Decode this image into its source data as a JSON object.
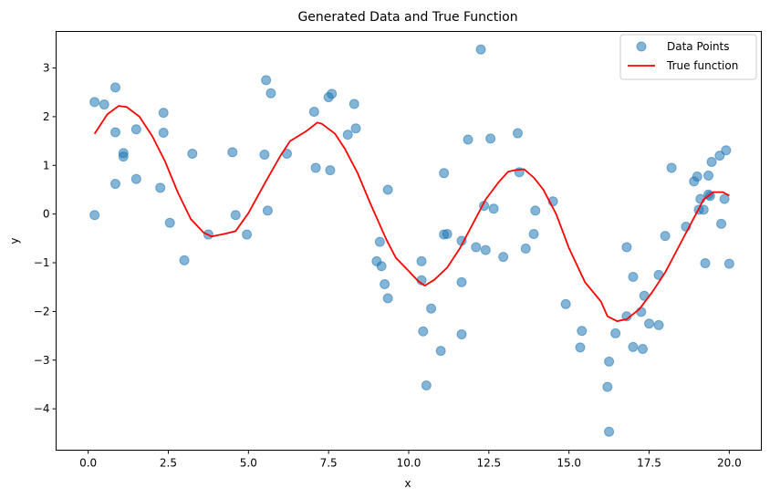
{
  "chart_data": {
    "type": "scatter",
    "title": "Generated Data and True Function",
    "xlabel": "x",
    "ylabel": "y",
    "xlim": [
      -1.0,
      21.0
    ],
    "ylim": [
      -4.85,
      3.75
    ],
    "xticks": [
      0.0,
      2.5,
      5.0,
      7.5,
      10.0,
      12.5,
      15.0,
      17.5,
      20.0
    ],
    "xtick_labels": [
      "0.0",
      "2.5",
      "5.0",
      "7.5",
      "10.0",
      "12.5",
      "15.0",
      "17.5",
      "20.0"
    ],
    "yticks": [
      -4,
      -3,
      -2,
      -1,
      0,
      1,
      2,
      3
    ],
    "ytick_labels": [
      "−4",
      "−3",
      "−2",
      "−1",
      "0",
      "1",
      "2",
      "3"
    ],
    "grid": false,
    "legend_position": "top-right",
    "series": [
      {
        "name": "Data Points",
        "kind": "scatter",
        "color": "#1f77b4",
        "opacity": 0.55,
        "points": [
          [
            0.2,
            2.3
          ],
          [
            0.2,
            -0.02
          ],
          [
            0.5,
            2.25
          ],
          [
            0.85,
            2.6
          ],
          [
            0.85,
            1.68
          ],
          [
            0.85,
            0.62
          ],
          [
            1.1,
            1.25
          ],
          [
            1.1,
            1.18
          ],
          [
            1.5,
            1.74
          ],
          [
            1.5,
            0.72
          ],
          [
            2.25,
            0.54
          ],
          [
            2.35,
            2.08
          ],
          [
            2.35,
            1.67
          ],
          [
            2.55,
            -0.18
          ],
          [
            3.0,
            -0.95
          ],
          [
            3.25,
            1.24
          ],
          [
            3.75,
            -0.42
          ],
          [
            4.5,
            1.27
          ],
          [
            4.6,
            -0.02
          ],
          [
            4.95,
            -0.42
          ],
          [
            5.5,
            1.22
          ],
          [
            5.55,
            2.75
          ],
          [
            5.6,
            0.07
          ],
          [
            5.7,
            2.48
          ],
          [
            6.2,
            1.24
          ],
          [
            7.05,
            2.1
          ],
          [
            7.1,
            0.95
          ],
          [
            7.5,
            2.4
          ],
          [
            7.55,
            0.9
          ],
          [
            7.6,
            2.47
          ],
          [
            8.1,
            1.63
          ],
          [
            8.3,
            2.26
          ],
          [
            8.35,
            1.76
          ],
          [
            9.0,
            -0.97
          ],
          [
            9.1,
            -0.57
          ],
          [
            9.15,
            -1.07
          ],
          [
            9.25,
            -1.44
          ],
          [
            9.35,
            0.5
          ],
          [
            9.35,
            -1.73
          ],
          [
            10.4,
            -0.97
          ],
          [
            10.4,
            -1.36
          ],
          [
            10.45,
            -2.41
          ],
          [
            10.55,
            -3.52
          ],
          [
            10.7,
            -1.94
          ],
          [
            11.0,
            -2.81
          ],
          [
            11.1,
            0.84
          ],
          [
            11.1,
            -0.42
          ],
          [
            11.2,
            -0.41
          ],
          [
            11.65,
            -0.55
          ],
          [
            11.65,
            -1.4
          ],
          [
            11.65,
            -2.47
          ],
          [
            11.85,
            1.53
          ],
          [
            12.1,
            -0.68
          ],
          [
            12.25,
            3.38
          ],
          [
            12.35,
            0.17
          ],
          [
            12.4,
            -0.74
          ],
          [
            12.55,
            1.55
          ],
          [
            12.65,
            0.11
          ],
          [
            12.95,
            -0.88
          ],
          [
            13.4,
            1.66
          ],
          [
            13.45,
            0.86
          ],
          [
            13.65,
            -0.71
          ],
          [
            13.9,
            -0.41
          ],
          [
            13.95,
            0.07
          ],
          [
            14.5,
            0.26
          ],
          [
            14.9,
            -1.85
          ],
          [
            15.35,
            -2.74
          ],
          [
            15.4,
            -2.4
          ],
          [
            16.2,
            -3.55
          ],
          [
            16.25,
            -3.03
          ],
          [
            16.25,
            -4.47
          ],
          [
            16.45,
            -2.45
          ],
          [
            16.8,
            -0.68
          ],
          [
            16.8,
            -2.1
          ],
          [
            17.0,
            -1.29
          ],
          [
            17.0,
            -2.73
          ],
          [
            17.25,
            -2.01
          ],
          [
            17.3,
            -2.77
          ],
          [
            17.35,
            -1.68
          ],
          [
            17.5,
            -2.25
          ],
          [
            17.8,
            -1.25
          ],
          [
            17.8,
            -2.28
          ],
          [
            18.0,
            -0.45
          ],
          [
            18.2,
            0.95
          ],
          [
            18.65,
            -0.26
          ],
          [
            18.9,
            0.67
          ],
          [
            19.0,
            0.77
          ],
          [
            19.05,
            0.09
          ],
          [
            19.1,
            0.31
          ],
          [
            19.2,
            0.09
          ],
          [
            19.25,
            -1.01
          ],
          [
            19.35,
            0.4
          ],
          [
            19.35,
            0.79
          ],
          [
            19.4,
            0.37
          ],
          [
            19.45,
            1.07
          ],
          [
            19.7,
            1.2
          ],
          [
            19.75,
            -0.2
          ],
          [
            19.85,
            0.31
          ],
          [
            19.9,
            1.31
          ],
          [
            20.0,
            -1.02
          ]
        ]
      },
      {
        "name": "True function",
        "kind": "line",
        "color": "#ff0000",
        "points": [
          [
            0.2,
            1.65
          ],
          [
            0.6,
            2.05
          ],
          [
            0.95,
            2.22
          ],
          [
            1.2,
            2.2
          ],
          [
            1.6,
            2.0
          ],
          [
            2.0,
            1.6
          ],
          [
            2.4,
            1.08
          ],
          [
            2.8,
            0.44
          ],
          [
            3.2,
            -0.1
          ],
          [
            3.6,
            -0.38
          ],
          [
            3.85,
            -0.46
          ],
          [
            4.3,
            -0.4
          ],
          [
            4.6,
            -0.35
          ],
          [
            5.0,
            0.02
          ],
          [
            5.5,
            0.62
          ],
          [
            6.0,
            1.2
          ],
          [
            6.3,
            1.5
          ],
          [
            6.8,
            1.7
          ],
          [
            7.15,
            1.88
          ],
          [
            7.3,
            1.85
          ],
          [
            7.7,
            1.65
          ],
          [
            8.0,
            1.35
          ],
          [
            8.4,
            0.85
          ],
          [
            8.8,
            0.22
          ],
          [
            9.3,
            -0.52
          ],
          [
            9.6,
            -0.9
          ],
          [
            10.0,
            -1.17
          ],
          [
            10.3,
            -1.38
          ],
          [
            10.5,
            -1.47
          ],
          [
            10.8,
            -1.35
          ],
          [
            11.2,
            -1.1
          ],
          [
            11.6,
            -0.7
          ],
          [
            12.0,
            -0.2
          ],
          [
            12.4,
            0.3
          ],
          [
            12.8,
            0.65
          ],
          [
            13.1,
            0.87
          ],
          [
            13.3,
            0.9
          ],
          [
            13.6,
            0.92
          ],
          [
            13.9,
            0.75
          ],
          [
            14.2,
            0.5
          ],
          [
            14.6,
            0.0
          ],
          [
            15.0,
            -0.7
          ],
          [
            15.5,
            -1.4
          ],
          [
            16.0,
            -1.8
          ],
          [
            16.2,
            -2.1
          ],
          [
            16.5,
            -2.2
          ],
          [
            16.8,
            -2.16
          ],
          [
            17.2,
            -1.95
          ],
          [
            17.6,
            -1.6
          ],
          [
            18.0,
            -1.2
          ],
          [
            18.4,
            -0.7
          ],
          [
            18.8,
            -0.2
          ],
          [
            19.2,
            0.3
          ],
          [
            19.5,
            0.45
          ],
          [
            19.8,
            0.45
          ],
          [
            20.0,
            0.38
          ]
        ]
      }
    ]
  }
}
